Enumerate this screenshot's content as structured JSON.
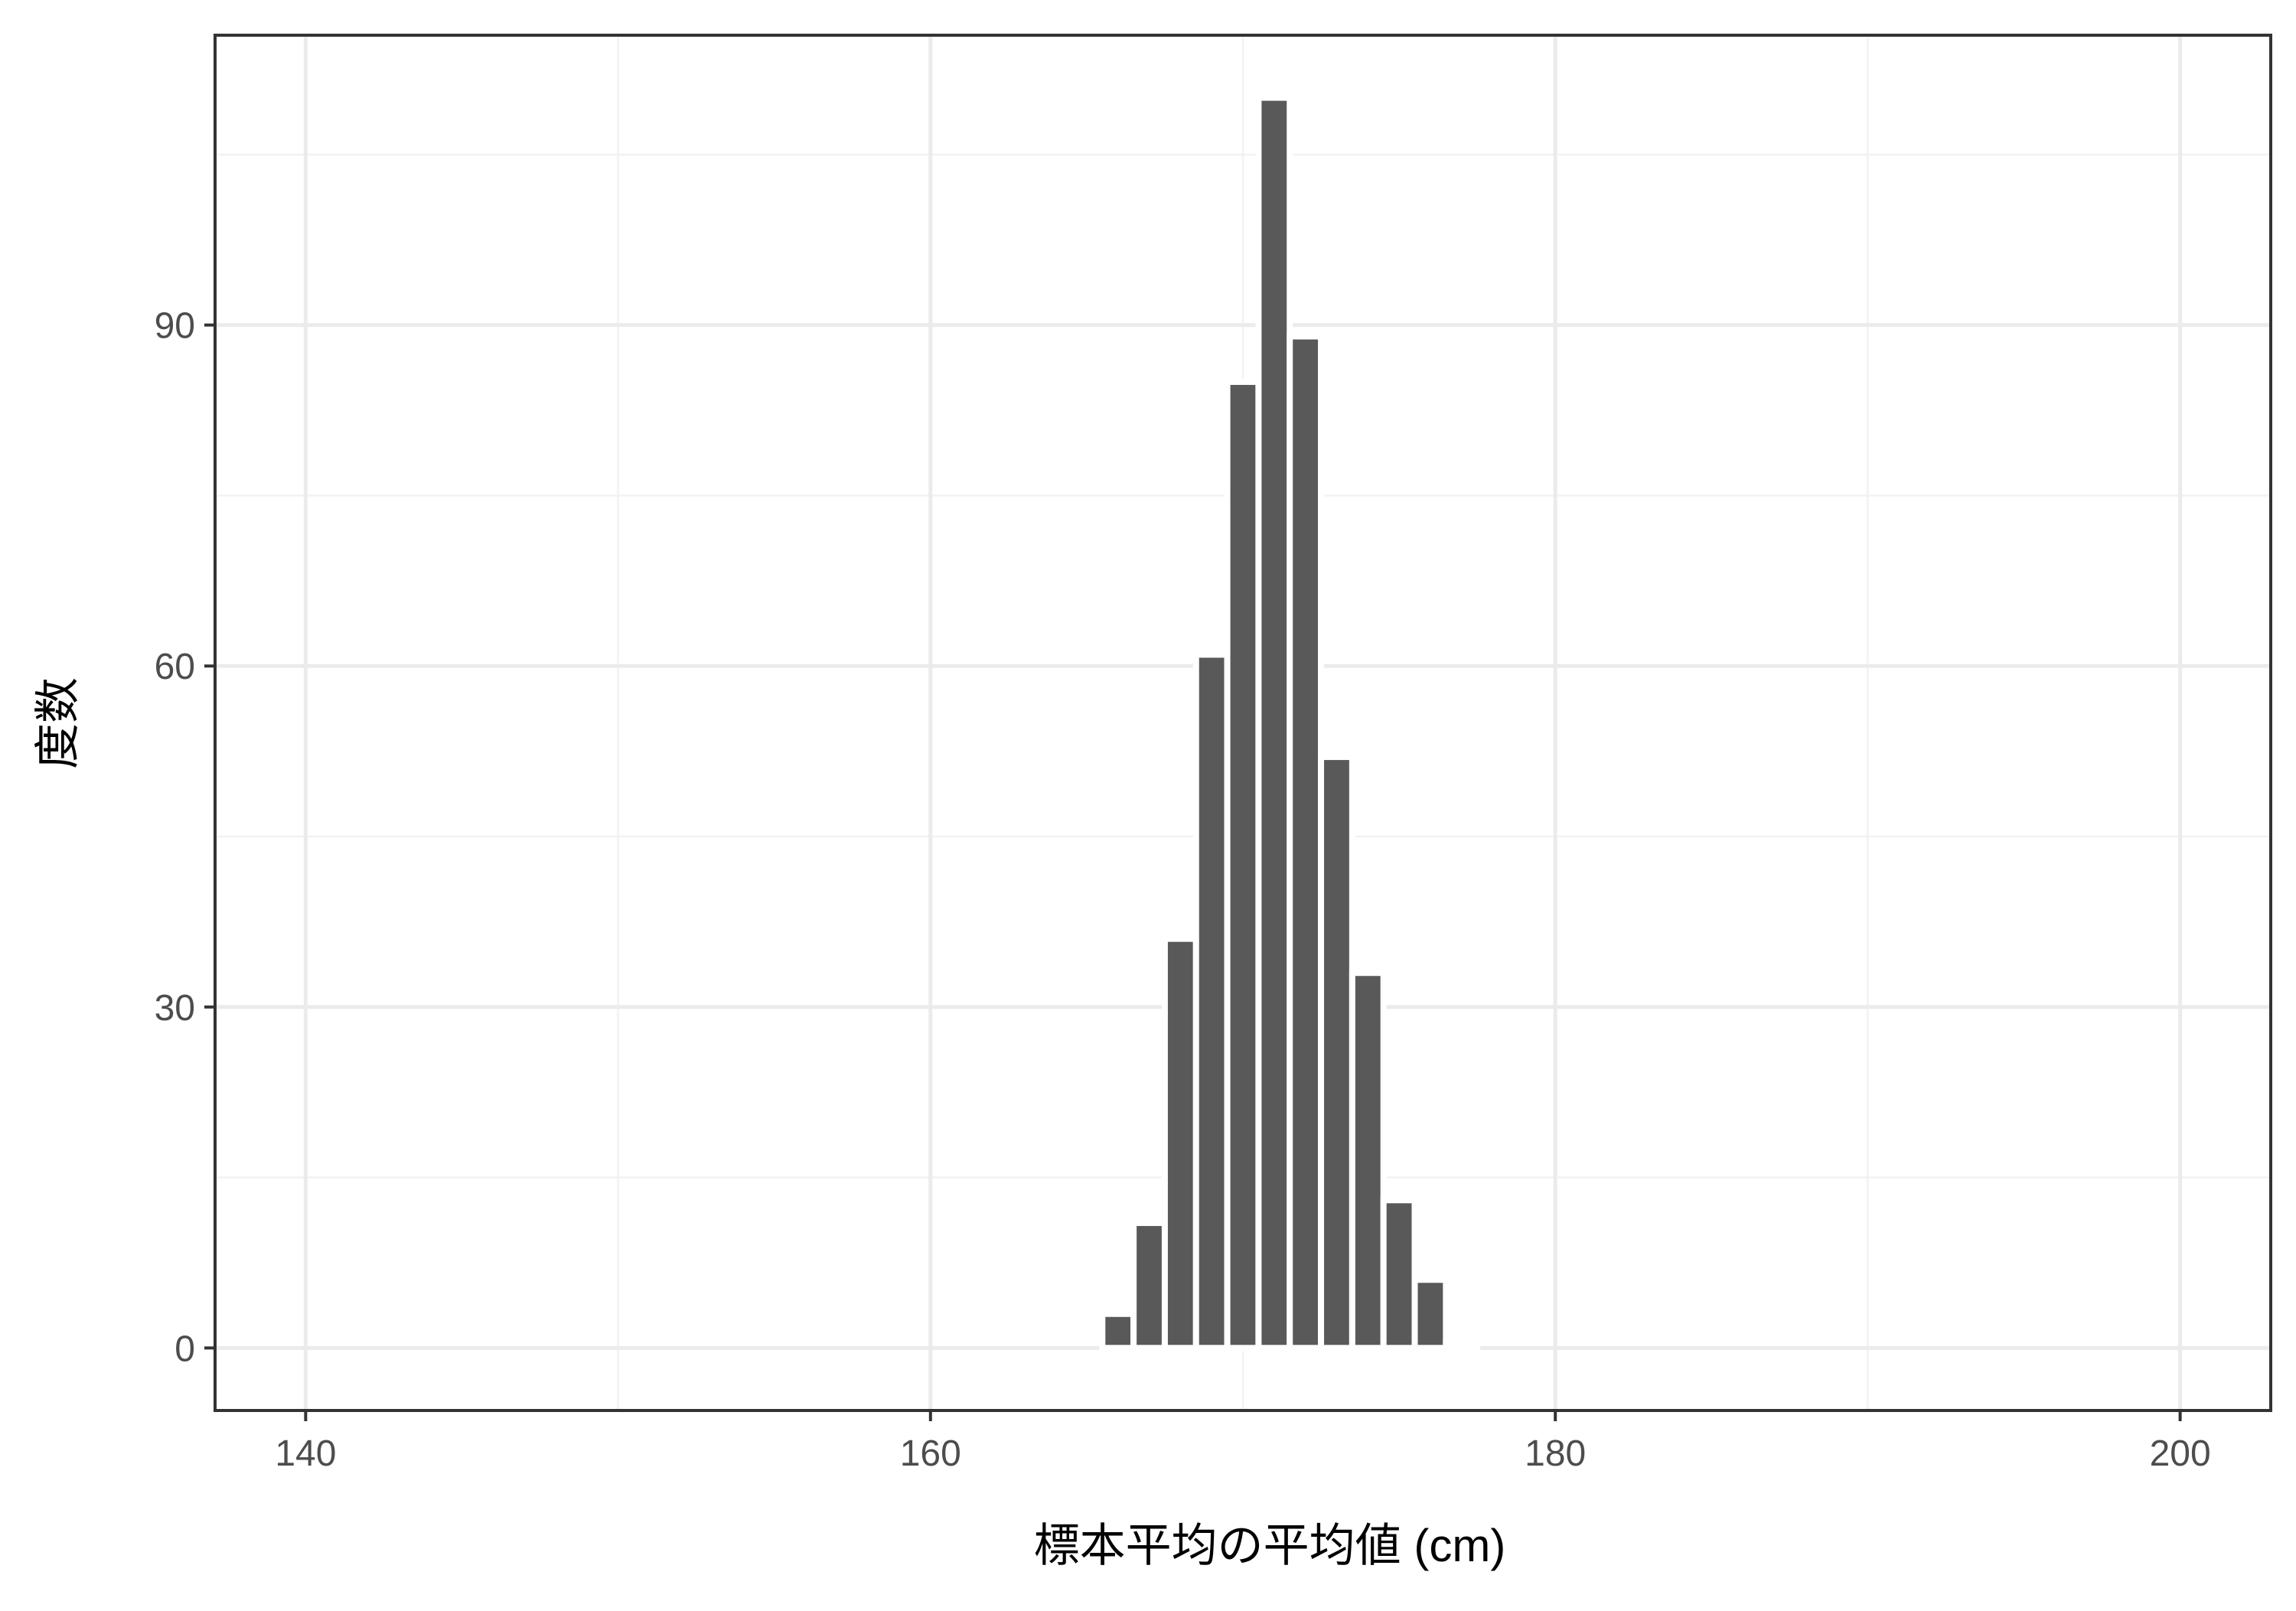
{
  "chart_data": {
    "type": "bar",
    "title": "",
    "xlabel": "標本平均の平均値 (cm)",
    "ylabel": "度数",
    "xlim": [
      137.1,
      202.9
    ],
    "ylim": [
      -5.5,
      115.5
    ],
    "x_ticks": [
      140,
      160,
      180,
      200
    ],
    "y_ticks": [
      0,
      30,
      60,
      90
    ],
    "x_tick_labels": [
      "140",
      "160",
      "180",
      "200"
    ],
    "y_tick_labels": [
      "0",
      "30",
      "60",
      "90"
    ],
    "x_minor_ticks": [
      150,
      170,
      190
    ],
    "y_minor_ticks": [
      15,
      45,
      75,
      105
    ],
    "grid": true,
    "bin_width": 1,
    "bins": [
      {
        "x": 165,
        "count": 0
      },
      {
        "x": 166,
        "count": 3
      },
      {
        "x": 167,
        "count": 11
      },
      {
        "x": 168,
        "count": 36
      },
      {
        "x": 169,
        "count": 61
      },
      {
        "x": 170,
        "count": 85
      },
      {
        "x": 171,
        "count": 110
      },
      {
        "x": 172,
        "count": 89
      },
      {
        "x": 173,
        "count": 52
      },
      {
        "x": 174,
        "count": 33
      },
      {
        "x": 175,
        "count": 13
      },
      {
        "x": 176,
        "count": 6
      },
      {
        "x": 177,
        "count": 0.5
      }
    ],
    "colors": {
      "bar": "#595959",
      "bar_outline": "#ffffff",
      "grid_major": "#ebebeb",
      "grid_minor": "#f2f2f2",
      "panel_border": "#333333",
      "tick_text": "#4d4d4d",
      "axis_title": "#000000"
    }
  }
}
